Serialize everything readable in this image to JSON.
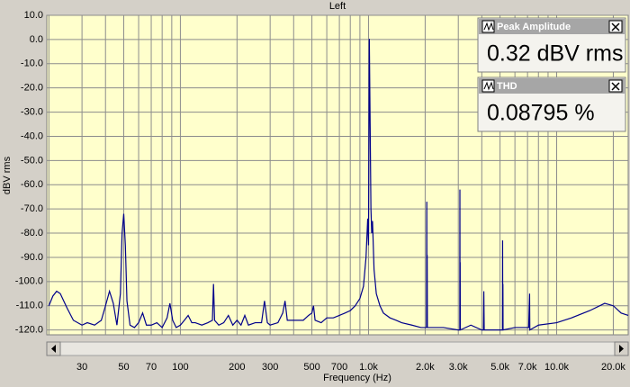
{
  "chart_data": {
    "type": "line",
    "title": "Left",
    "xlabel": "Frequency (Hz)",
    "ylabel": "dBV rms",
    "xscale": "log",
    "xlim": [
      19.5,
      24000
    ],
    "ylim": [
      -122,
      10
    ],
    "grid": true,
    "xticks": [
      30,
      50,
      70,
      100,
      200,
      300,
      500,
      700,
      {
        "value": 1000,
        "label": "1.0k"
      },
      {
        "value": 2000,
        "label": "2.0k"
      },
      {
        "value": 3000,
        "label": "3.0k"
      },
      {
        "value": 5000,
        "label": "5.0k"
      },
      {
        "value": 7000,
        "label": "7.0k"
      },
      {
        "value": 10000,
        "label": "10.0k"
      },
      {
        "value": 20000,
        "label": "20.0k"
      }
    ],
    "xgrid_minor": [
      20,
      40,
      60,
      80,
      90,
      400,
      600,
      800,
      900,
      4000,
      6000,
      8000,
      9000
    ],
    "yticks": [
      {
        "value": 10,
        "label": "10.0"
      },
      {
        "value": 0,
        "label": "0.0"
      },
      {
        "value": -10,
        "label": "-10.0"
      },
      {
        "value": -20,
        "label": "-20.0"
      },
      {
        "value": -30,
        "label": "-30.0"
      },
      {
        "value": -40,
        "label": "-40.0"
      },
      {
        "value": -50,
        "label": "-50.0"
      },
      {
        "value": -60,
        "label": "-60.0"
      },
      {
        "value": -70,
        "label": "-70.0"
      },
      {
        "value": -80,
        "label": "-80.0"
      },
      {
        "value": -90,
        "label": "-90.0"
      },
      {
        "value": -100,
        "label": "-100.0"
      },
      {
        "value": -110,
        "label": "-110.0"
      },
      {
        "value": -120,
        "label": "-120.0"
      }
    ],
    "x": [
      20,
      21,
      22,
      23,
      25,
      27,
      30,
      32,
      35,
      38,
      40,
      42,
      44,
      46,
      48,
      49,
      50,
      51,
      52,
      54,
      57,
      60,
      63,
      66,
      70,
      75,
      80,
      85,
      88,
      91,
      95,
      100,
      105,
      110,
      115,
      120,
      130,
      140,
      148,
      150,
      152,
      160,
      170,
      180,
      190,
      200,
      210,
      220,
      230,
      250,
      270,
      280,
      290,
      300,
      330,
      350,
      360,
      370,
      400,
      430,
      450,
      480,
      500,
      510,
      520,
      560,
      600,
      650,
      700,
      750,
      800,
      850,
      900,
      940,
      970,
      990,
      1000,
      1010,
      1030,
      1040,
      1050,
      1070,
      1100,
      1150,
      1200,
      1300,
      1400,
      1500,
      1700,
      1900,
      2035,
      2040,
      2045,
      2050,
      2055,
      2500,
      3000,
      3055,
      3060,
      3065,
      3070,
      3075,
      3500,
      4000,
      4080,
      4100,
      4120,
      4200,
      5000,
      5150,
      5160,
      5170,
      5180,
      5190,
      6000,
      7100,
      7180,
      7200,
      8000,
      10000,
      12000,
      15000,
      18000,
      20000,
      22000,
      24000
    ],
    "series": [
      {
        "color": "#00008b",
        "values": [
          -110,
          -106,
          -104,
          -105,
          -111,
          -116,
          -118,
          -117,
          -118,
          -116,
          -110,
          -104,
          -109,
          -118,
          -105,
          -80,
          -72,
          -85,
          -108,
          -118,
          -119,
          -117,
          -113,
          -118,
          -118,
          -117,
          -119,
          -115,
          -109,
          -116,
          -119,
          -118,
          -116,
          -114,
          -117,
          -117,
          -118,
          -117,
          -116,
          -101,
          -116,
          -118,
          -117,
          -114,
          -118,
          -116,
          -118,
          -114,
          -118,
          -117,
          -117,
          -108,
          -117,
          -118,
          -117,
          -113,
          -108,
          -116,
          -116,
          -116,
          -116,
          -114,
          -113,
          -110,
          -116,
          -117,
          -115,
          -115,
          -114,
          -113,
          -112,
          -110,
          -107,
          -102,
          -90,
          -74,
          -85,
          0.3,
          -70,
          -80,
          -75,
          -95,
          -105,
          -110,
          -113,
          -115,
          -116,
          -117,
          -118,
          -119,
          -119,
          -67,
          -119,
          -89,
          -119,
          -119,
          -120,
          -120,
          -62,
          -120,
          -92,
          -120,
          -118,
          -120,
          -120,
          -104,
          -120,
          -120,
          -120,
          -120,
          -83,
          -120,
          -101,
          -120,
          -119,
          -119,
          -105,
          -120,
          -118,
          -117,
          -115,
          -112,
          -109,
          -110,
          -113,
          -114
        ]
      }
    ],
    "panels": [
      {
        "title": "Peak Amplitude",
        "value": "0.32 dBV rms"
      },
      {
        "title": "THD",
        "value": "0.08795 %"
      }
    ]
  }
}
